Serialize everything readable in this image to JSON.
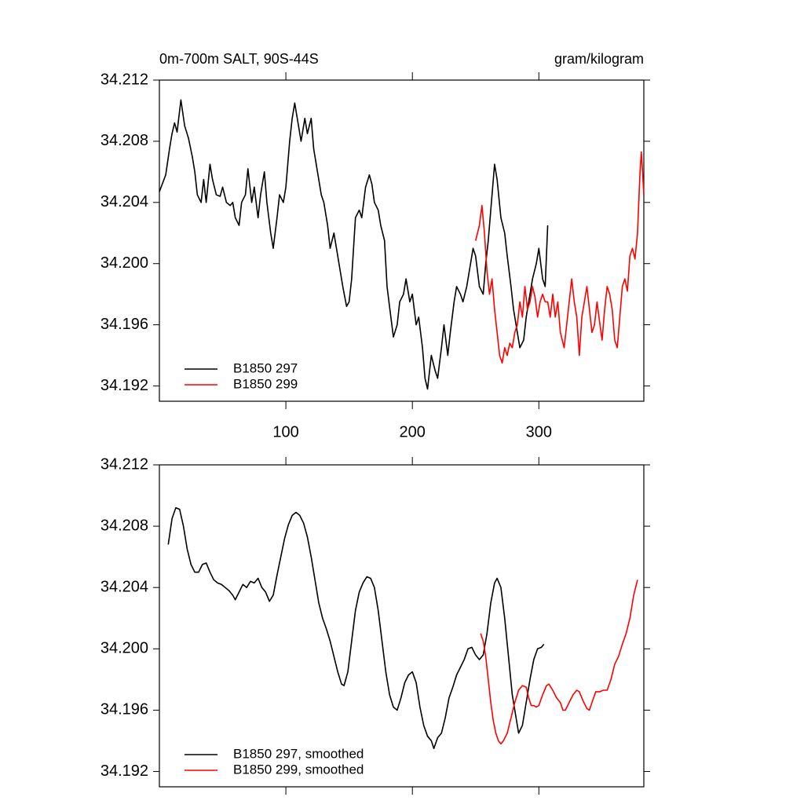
{
  "chart_data": [
    {
      "type": "line",
      "title": "0m-700m SALT, 90S-44S",
      "units": "gram/kilogram",
      "xlim": [
        0,
        383
      ],
      "ylim": [
        34.191,
        34.212
      ],
      "xticks": [
        100,
        200,
        300
      ],
      "show_xtick_labels": true,
      "yticks": [
        34.192,
        34.196,
        {
          "value": 34.2,
          "label": "34.200"
        },
        34.204,
        34.208,
        34.212
      ],
      "legend": "lower left",
      "series": [
        {
          "name": "B1850 297",
          "color": "#000000",
          "x": [
            0,
            5,
            8,
            10,
            12,
            14,
            17,
            20,
            23,
            26,
            28,
            30,
            33,
            35,
            37,
            40,
            42,
            45,
            48,
            50,
            53,
            56,
            58,
            60,
            63,
            65,
            68,
            70,
            73,
            75,
            78,
            80,
            83,
            85,
            88,
            90,
            93,
            95,
            98,
            100,
            103,
            105,
            107,
            110,
            112,
            115,
            117,
            120,
            122,
            125,
            128,
            130,
            133,
            135,
            138,
            140,
            143,
            145,
            148,
            150,
            152,
            155,
            158,
            160,
            163,
            166,
            168,
            170,
            173,
            175,
            178,
            180,
            183,
            185,
            188,
            190,
            193,
            195,
            198,
            200,
            203,
            205,
            208,
            210,
            212,
            215,
            218,
            220,
            223,
            225,
            228,
            230,
            233,
            235,
            238,
            240,
            243,
            245,
            248,
            250,
            253,
            256,
            258,
            260,
            263,
            265,
            267,
            270,
            273,
            275,
            278,
            280,
            283,
            285,
            288,
            290,
            293,
            295,
            298,
            300,
            303,
            305,
            307
          ],
          "values": [
            34.2047,
            34.2058,
            34.2075,
            34.2085,
            34.2092,
            34.2086,
            34.2107,
            34.209,
            34.2082,
            34.207,
            34.206,
            34.2045,
            34.204,
            34.2055,
            34.204,
            34.2065,
            34.2055,
            34.2045,
            34.2044,
            34.205,
            34.204,
            34.2038,
            34.204,
            34.203,
            34.2025,
            34.204,
            34.2045,
            34.2062,
            34.204,
            34.205,
            34.203,
            34.2045,
            34.206,
            34.204,
            34.202,
            34.201,
            34.203,
            34.2045,
            34.204,
            34.205,
            34.208,
            34.2095,
            34.2105,
            34.209,
            34.208,
            34.2095,
            34.2085,
            34.2095,
            34.2075,
            34.206,
            34.2045,
            34.204,
            34.2025,
            34.201,
            34.202,
            34.201,
            34.1995,
            34.1985,
            34.1972,
            34.1975,
            34.199,
            34.203,
            34.2035,
            34.203,
            34.205,
            34.2058,
            34.2052,
            34.204,
            34.2035,
            34.2025,
            34.2015,
            34.1985,
            34.1965,
            34.1952,
            34.196,
            34.1975,
            34.198,
            34.199,
            34.1975,
            34.198,
            34.196,
            34.1965,
            34.1945,
            34.1925,
            34.1918,
            34.194,
            34.193,
            34.1925,
            34.1945,
            34.196,
            34.194,
            34.1955,
            34.1975,
            34.1985,
            34.198,
            34.1975,
            34.1985,
            34.1995,
            34.201,
            34.2005,
            34.1985,
            34.198,
            34.2,
            34.2015,
            34.2045,
            34.2065,
            34.2055,
            34.203,
            34.202,
            34.2005,
            34.1985,
            34.197,
            34.1955,
            34.1945,
            34.195,
            34.1965,
            34.198,
            34.199,
            34.2,
            34.201,
            34.199,
            34.1985,
            34.2025
          ]
        },
        {
          "name": "B1850 299",
          "color": "#ff0000",
          "x": [
            250,
            253,
            255,
            257,
            259,
            261,
            263,
            265,
            267,
            269,
            271,
            273,
            275,
            277,
            279,
            281,
            283,
            285,
            287,
            289,
            291,
            293,
            295,
            297,
            299,
            301,
            303,
            305,
            307,
            309,
            311,
            313,
            315,
            317,
            320,
            322,
            324,
            326,
            328,
            330,
            332,
            334,
            336,
            338,
            340,
            342,
            344,
            346,
            348,
            350,
            352,
            354,
            356,
            358,
            360,
            362,
            364,
            366,
            368,
            370,
            372,
            374,
            376,
            378,
            379,
            380,
            381,
            382,
            383
          ],
          "values": [
            34.2015,
            34.2025,
            34.2038,
            34.202,
            34.1995,
            34.198,
            34.199,
            34.197,
            34.1955,
            34.194,
            34.1935,
            34.1945,
            34.194,
            34.1948,
            34.1945,
            34.1955,
            34.196,
            34.1975,
            34.1965,
            34.1985,
            34.197,
            34.1975,
            34.1985,
            34.1978,
            34.1965,
            34.1975,
            34.198,
            34.1975,
            34.1975,
            34.1965,
            34.198,
            34.1965,
            34.1975,
            34.1955,
            34.1945,
            34.196,
            34.1975,
            34.199,
            34.1975,
            34.1965,
            34.194,
            34.1965,
            34.1975,
            34.1985,
            34.197,
            34.1955,
            34.196,
            34.1975,
            34.1962,
            34.195,
            34.197,
            34.1985,
            34.198,
            34.197,
            34.195,
            34.1945,
            34.1965,
            34.1985,
            34.199,
            34.1982,
            34.2005,
            34.201,
            34.2003,
            34.202,
            34.204,
            34.206,
            34.2073,
            34.206,
            34.2045
          ]
        }
      ]
    },
    {
      "type": "line",
      "xlim": [
        0,
        383
      ],
      "ylim": [
        34.191,
        34.212
      ],
      "xticks": [
        100,
        200,
        300
      ],
      "show_xtick_labels": false,
      "yticks": [
        34.192,
        34.196,
        {
          "value": 34.2,
          "label": "34.200"
        },
        34.204,
        34.208,
        34.212
      ],
      "legend": "lower left",
      "series": [
        {
          "name": "B1850 297, smoothed",
          "color": "#000000",
          "x": [
            7,
            10,
            13,
            16,
            19,
            22,
            25,
            28,
            31,
            34,
            37,
            40,
            43,
            46,
            49,
            52,
            55,
            58,
            60,
            63,
            66,
            69,
            72,
            75,
            78,
            81,
            84,
            87,
            90,
            93,
            96,
            99,
            102,
            105,
            108,
            111,
            114,
            117,
            120,
            123,
            126,
            129,
            132,
            135,
            138,
            141,
            144,
            146,
            149,
            152,
            155,
            158,
            161,
            164,
            167,
            170,
            173,
            176,
            179,
            182,
            185,
            188,
            191,
            194,
            197,
            200,
            203,
            206,
            209,
            212,
            215,
            217,
            220,
            223,
            226,
            229,
            232,
            235,
            238,
            241,
            244,
            247,
            250,
            253,
            256,
            259,
            262,
            265,
            267,
            270,
            273,
            276,
            279,
            282,
            284,
            287,
            290,
            293,
            296,
            299,
            302,
            304
          ],
          "values": [
            34.2068,
            34.2085,
            34.2092,
            34.2091,
            34.208,
            34.2065,
            34.2055,
            34.205,
            34.205,
            34.2055,
            34.2056,
            34.205,
            34.2045,
            34.2043,
            34.2042,
            34.204,
            34.2038,
            34.2035,
            34.2032,
            34.2037,
            34.2042,
            34.204,
            34.2044,
            34.2043,
            34.2046,
            34.204,
            34.2037,
            34.2031,
            34.2035,
            34.2048,
            34.206,
            34.2072,
            34.2081,
            34.2087,
            34.2089,
            34.2087,
            34.2082,
            34.2073,
            34.206,
            34.2045,
            34.203,
            34.202,
            34.2013,
            34.2005,
            34.1995,
            34.1985,
            34.1977,
            34.1976,
            34.1985,
            34.2005,
            34.2025,
            34.2037,
            34.2043,
            34.2047,
            34.2046,
            34.204,
            34.2025,
            34.2005,
            34.1985,
            34.197,
            34.1962,
            34.196,
            34.1968,
            34.1978,
            34.1983,
            34.1985,
            34.1978,
            34.1962,
            34.195,
            34.1943,
            34.194,
            34.1935,
            34.1942,
            34.1945,
            34.1955,
            34.1968,
            34.1975,
            34.1983,
            34.1988,
            34.1993,
            34.2,
            34.2001,
            34.1996,
            34.1993,
            34.1996,
            34.201,
            34.203,
            34.2043,
            34.2046,
            34.204,
            34.202,
            34.1995,
            34.197,
            34.1955,
            34.1945,
            34.195,
            34.1965,
            34.198,
            34.1993,
            34.2,
            34.2001,
            34.2003
          ]
        },
        {
          "name": "B1850 299, smoothed",
          "color": "#ff0000",
          "x": [
            254,
            256,
            258,
            260,
            262,
            264,
            266,
            268,
            270,
            272,
            275,
            278,
            281,
            284,
            287,
            290,
            292,
            294,
            296,
            298,
            300,
            303,
            306,
            308,
            311,
            314,
            317,
            319,
            321,
            324,
            327,
            330,
            332,
            335,
            338,
            340,
            342,
            345,
            348,
            351,
            354,
            357,
            360,
            363,
            366,
            369,
            372,
            375,
            378
          ],
          "values": [
            34.201,
            34.2005,
            34.1995,
            34.198,
            34.1965,
            34.1953,
            34.1945,
            34.194,
            34.1938,
            34.194,
            34.1945,
            34.1955,
            34.1965,
            34.1973,
            34.1976,
            34.1975,
            34.1968,
            34.1963,
            34.1963,
            34.1962,
            34.1963,
            34.197,
            34.1976,
            34.1977,
            34.1973,
            34.1968,
            34.1965,
            34.196,
            34.196,
            34.1965,
            34.197,
            34.1973,
            34.1972,
            34.1966,
            34.1961,
            34.196,
            34.1965,
            34.1972,
            34.1972,
            34.1973,
            34.1973,
            34.198,
            34.199,
            34.1995,
            34.2003,
            34.201,
            34.202,
            34.2035,
            34.2045
          ]
        }
      ]
    }
  ]
}
